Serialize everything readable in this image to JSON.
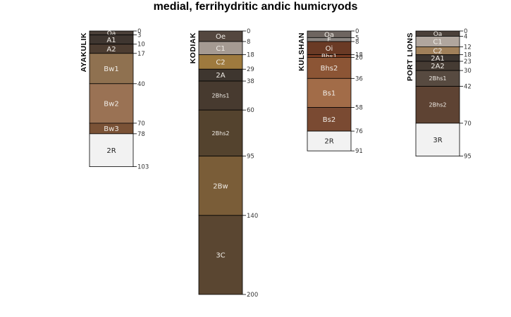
{
  "title": "medial, ferrihydritic andic humicryods",
  "profiles": [
    {
      "name": "AYAKULIK",
      "horizons": [
        {
          "name": "Oa",
          "top": 0,
          "bottom": 3,
          "color": "#4a4039"
        },
        {
          "name": "A1",
          "top": 3,
          "bottom": 10,
          "color": "#3f3630"
        },
        {
          "name": "A2",
          "top": 10,
          "bottom": 17,
          "color": "#4d3d31"
        },
        {
          "name": "Bw1",
          "top": 17,
          "bottom": 40,
          "color": "#8f7150"
        },
        {
          "name": "Bw2",
          "top": 40,
          "bottom": 70,
          "color": "#9a7254"
        },
        {
          "name": "Bw3",
          "top": 70,
          "bottom": 78,
          "color": "#7a5236"
        },
        {
          "name": "2R",
          "top": 78,
          "bottom": 103,
          "color": "#f2f2f2"
        }
      ]
    },
    {
      "name": "KODIAK",
      "horizons": [
        {
          "name": "Oe",
          "top": 0,
          "bottom": 8,
          "color": "#54473f"
        },
        {
          "name": "C1",
          "top": 8,
          "bottom": 18,
          "color": "#a59a92"
        },
        {
          "name": "C2",
          "top": 18,
          "bottom": 29,
          "color": "#9e7a3e"
        },
        {
          "name": "2A",
          "top": 29,
          "bottom": 38,
          "color": "#3e362f"
        },
        {
          "name": "2Bhs1",
          "top": 38,
          "bottom": 60,
          "color": "#473a2f"
        },
        {
          "name": "2Bhs2",
          "top": 60,
          "bottom": 95,
          "color": "#54432e"
        },
        {
          "name": "2Bw",
          "top": 95,
          "bottom": 140,
          "color": "#7a5d38"
        },
        {
          "name": "3C",
          "top": 140,
          "bottom": 200,
          "color": "#5a4631"
        }
      ]
    },
    {
      "name": "KULSHAN",
      "horizons": [
        {
          "name": "Oa",
          "top": 0,
          "bottom": 5,
          "color": "#6e6560"
        },
        {
          "name": "E",
          "top": 5,
          "bottom": 8,
          "color": "#8a8480"
        },
        {
          "name": "Oi",
          "top": 8,
          "bottom": 18,
          "color": "#6a3a25"
        },
        {
          "name": "Bhs1",
          "top": 18,
          "bottom": 20,
          "color": "#7a3c22"
        },
        {
          "name": "Bhs2",
          "top": 20,
          "bottom": 36,
          "color": "#8c5535"
        },
        {
          "name": "Bs1",
          "top": 36,
          "bottom": 58,
          "color": "#a26c48"
        },
        {
          "name": "Bs2",
          "top": 58,
          "bottom": 76,
          "color": "#7a4a32"
        },
        {
          "name": "2R",
          "top": 76,
          "bottom": 91,
          "color": "#f2f2f2"
        }
      ]
    },
    {
      "name": "PORT LIONS",
      "horizons": [
        {
          "name": "Oa",
          "top": 0,
          "bottom": 4,
          "color": "#4a403a"
        },
        {
          "name": "C1",
          "top": 4,
          "bottom": 12,
          "color": "#b0a69e"
        },
        {
          "name": "C2",
          "top": 12,
          "bottom": 18,
          "color": "#a0805a"
        },
        {
          "name": "2A1",
          "top": 18,
          "bottom": 23,
          "color": "#3d3631"
        },
        {
          "name": "2A2",
          "top": 23,
          "bottom": 30,
          "color": "#453b33"
        },
        {
          "name": "2Bhs1",
          "top": 30,
          "bottom": 42,
          "color": "#574a40"
        },
        {
          "name": "2Bhs2",
          "top": 42,
          "bottom": 70,
          "color": "#5e4333"
        },
        {
          "name": "3R",
          "top": 70,
          "bottom": 95,
          "color": "#f2f2f2"
        }
      ]
    }
  ]
}
